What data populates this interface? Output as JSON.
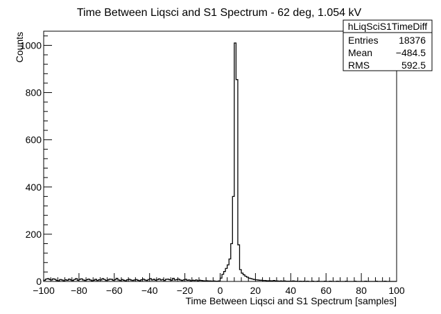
{
  "chart_data": {
    "type": "histogram",
    "title": "Time Between Liqsci and S1 Spectrum - 62 deg, 1.054 kV",
    "xlabel": "Time Between Liqsci and S1 Spectrum [samples]",
    "ylabel": "Counts",
    "xlim": [
      -100,
      100
    ],
    "ylim": [
      0,
      1060
    ],
    "bin_width": 1,
    "x_ticks": [
      -100,
      -80,
      -60,
      -40,
      -20,
      0,
      20,
      40,
      60,
      80,
      100
    ],
    "x_tick_labels": [
      "−100",
      "−80",
      "−60",
      "−40",
      "−20",
      "0",
      "20",
      "40",
      "60",
      "80",
      "100"
    ],
    "y_ticks": [
      0,
      200,
      400,
      600,
      800,
      1000
    ],
    "y_tick_labels": [
      "0",
      "200",
      "400",
      "600",
      "800",
      "1000"
    ],
    "grid": false,
    "legend": "none",
    "line_color": "#000000",
    "bins": [
      [
        -100,
        5
      ],
      [
        -99,
        10
      ],
      [
        -98,
        12
      ],
      [
        -97,
        8
      ],
      [
        -96,
        6
      ],
      [
        -95,
        11
      ],
      [
        -94,
        9
      ],
      [
        -93,
        4
      ],
      [
        -92,
        3
      ],
      [
        -91,
        8
      ],
      [
        -90,
        6
      ],
      [
        -89,
        3
      ],
      [
        -88,
        7
      ],
      [
        -87,
        5
      ],
      [
        -86,
        10
      ],
      [
        -85,
        6
      ],
      [
        -84,
        4
      ],
      [
        -83,
        8
      ],
      [
        -82,
        12
      ],
      [
        -81,
        5
      ],
      [
        -80,
        9
      ],
      [
        -79,
        11
      ],
      [
        -78,
        6
      ],
      [
        -77,
        4
      ],
      [
        -76,
        7
      ],
      [
        -75,
        10
      ],
      [
        -74,
        6
      ],
      [
        -73,
        3
      ],
      [
        -72,
        5
      ],
      [
        -71,
        9
      ],
      [
        -70,
        4
      ],
      [
        -69,
        7
      ],
      [
        -68,
        6
      ],
      [
        -67,
        12
      ],
      [
        -66,
        8
      ],
      [
        -65,
        4
      ],
      [
        -64,
        6
      ],
      [
        -63,
        10
      ],
      [
        -62,
        9
      ],
      [
        -61,
        5
      ],
      [
        -60,
        7
      ],
      [
        -59,
        13
      ],
      [
        -58,
        6
      ],
      [
        -57,
        4
      ],
      [
        -56,
        8
      ],
      [
        -55,
        5
      ],
      [
        -54,
        3
      ],
      [
        -53,
        7
      ],
      [
        -52,
        9
      ],
      [
        -51,
        6
      ],
      [
        -50,
        4
      ],
      [
        -49,
        6
      ],
      [
        -48,
        8
      ],
      [
        -47,
        5
      ],
      [
        -46,
        3
      ],
      [
        -45,
        7
      ],
      [
        -44,
        10
      ],
      [
        -43,
        6
      ],
      [
        -42,
        4
      ],
      [
        -41,
        8
      ],
      [
        -40,
        12
      ],
      [
        -39,
        6
      ],
      [
        -38,
        9
      ],
      [
        -37,
        5
      ],
      [
        -36,
        7
      ],
      [
        -35,
        11
      ],
      [
        -34,
        6
      ],
      [
        -33,
        8
      ],
      [
        -32,
        4
      ],
      [
        -31,
        9
      ],
      [
        -30,
        10
      ],
      [
        -29,
        7
      ],
      [
        -28,
        5
      ],
      [
        -27,
        13
      ],
      [
        -26,
        6
      ],
      [
        -25,
        8
      ],
      [
        -24,
        10
      ],
      [
        -23,
        6
      ],
      [
        -22,
        4
      ],
      [
        -21,
        7
      ],
      [
        -20,
        9
      ],
      [
        -19,
        5
      ],
      [
        -18,
        6
      ],
      [
        -17,
        3
      ],
      [
        -16,
        5
      ],
      [
        -15,
        4
      ],
      [
        -14,
        6
      ],
      [
        -13,
        3
      ],
      [
        -12,
        5
      ],
      [
        -11,
        4
      ],
      [
        -10,
        3
      ],
      [
        -9,
        2
      ],
      [
        -8,
        3
      ],
      [
        -7,
        2
      ],
      [
        -6,
        2
      ],
      [
        -5,
        1
      ],
      [
        -4,
        2
      ],
      [
        -3,
        1
      ],
      [
        -2,
        1
      ],
      [
        -1,
        2
      ],
      [
        0,
        14
      ],
      [
        1,
        30
      ],
      [
        2,
        42
      ],
      [
        3,
        55
      ],
      [
        4,
        70
      ],
      [
        5,
        95
      ],
      [
        6,
        160
      ],
      [
        7,
        360
      ],
      [
        8,
        1010
      ],
      [
        9,
        855
      ],
      [
        10,
        155
      ],
      [
        11,
        50
      ],
      [
        12,
        35
      ],
      [
        13,
        28
      ],
      [
        14,
        22
      ],
      [
        15,
        18
      ],
      [
        16,
        14
      ],
      [
        17,
        12
      ],
      [
        18,
        10
      ],
      [
        19,
        8
      ],
      [
        20,
        7
      ],
      [
        21,
        6
      ],
      [
        22,
        5
      ],
      [
        23,
        5
      ],
      [
        24,
        4
      ],
      [
        25,
        4
      ],
      [
        26,
        3
      ],
      [
        27,
        3
      ],
      [
        28,
        3
      ],
      [
        29,
        2
      ],
      [
        30,
        4
      ],
      [
        31,
        2
      ],
      [
        32,
        2
      ],
      [
        33,
        1
      ],
      [
        34,
        2
      ],
      [
        35,
        1
      ],
      [
        36,
        2
      ],
      [
        37,
        1
      ],
      [
        38,
        1
      ],
      [
        39,
        1
      ],
      [
        40,
        1
      ],
      [
        41,
        2
      ],
      [
        42,
        1
      ],
      [
        43,
        1
      ],
      [
        44,
        0
      ],
      [
        45,
        1
      ],
      [
        46,
        0
      ],
      [
        47,
        1
      ],
      [
        48,
        0
      ],
      [
        49,
        1
      ],
      [
        50,
        0
      ],
      [
        51,
        0
      ],
      [
        52,
        1
      ],
      [
        53,
        0
      ],
      [
        54,
        0
      ],
      [
        55,
        1
      ],
      [
        56,
        0
      ],
      [
        57,
        0
      ],
      [
        58,
        0
      ],
      [
        59,
        1
      ],
      [
        60,
        0
      ],
      [
        61,
        0
      ],
      [
        62,
        1
      ],
      [
        63,
        0
      ],
      [
        64,
        0
      ],
      [
        65,
        0
      ],
      [
        66,
        1
      ],
      [
        67,
        0
      ],
      [
        68,
        0
      ],
      [
        69,
        0
      ],
      [
        70,
        0
      ],
      [
        71,
        1
      ],
      [
        72,
        0
      ],
      [
        73,
        0
      ],
      [
        74,
        0
      ],
      [
        75,
        0
      ],
      [
        76,
        1
      ],
      [
        77,
        0
      ],
      [
        78,
        0
      ],
      [
        79,
        0
      ],
      [
        80,
        0
      ],
      [
        81,
        0
      ],
      [
        82,
        1
      ],
      [
        83,
        0
      ],
      [
        84,
        0
      ],
      [
        85,
        0
      ],
      [
        86,
        0
      ],
      [
        87,
        0
      ],
      [
        88,
        1
      ],
      [
        89,
        0
      ],
      [
        90,
        0
      ],
      [
        91,
        0
      ],
      [
        92,
        0
      ],
      [
        93,
        1
      ],
      [
        94,
        0
      ],
      [
        95,
        0
      ],
      [
        96,
        0
      ],
      [
        97,
        0
      ],
      [
        98,
        0
      ],
      [
        99,
        0
      ]
    ],
    "stats_box": {
      "name": "hLiqSciS1TimeDiff",
      "rows": [
        {
          "label": "Entries",
          "value": "18376"
        },
        {
          "label": "Mean",
          "value": "−484.5"
        },
        {
          "label": "RMS",
          "value": "592.5"
        }
      ]
    }
  }
}
